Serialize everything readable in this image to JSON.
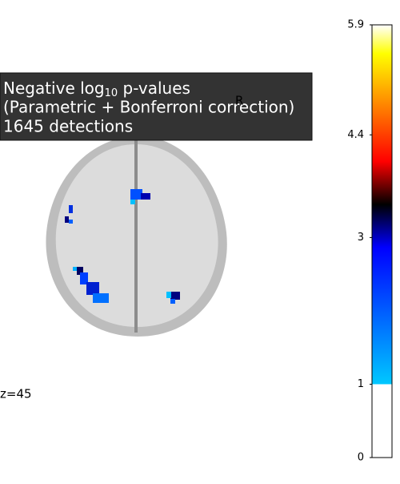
{
  "title": {
    "line1_prefix": "Negative log",
    "line1_subscript": "10",
    "line1_suffix": " p-values",
    "line2": "(Parametric + Bonferroni correction)",
    "line3": "1645 detections"
  },
  "orientation_label": "R",
  "slice_label": "z=45",
  "colorbar": {
    "lim": [
      0,
      5.9
    ],
    "ticks": [
      0,
      1,
      3,
      4.4,
      5.9
    ],
    "threshold": 1
  }
}
